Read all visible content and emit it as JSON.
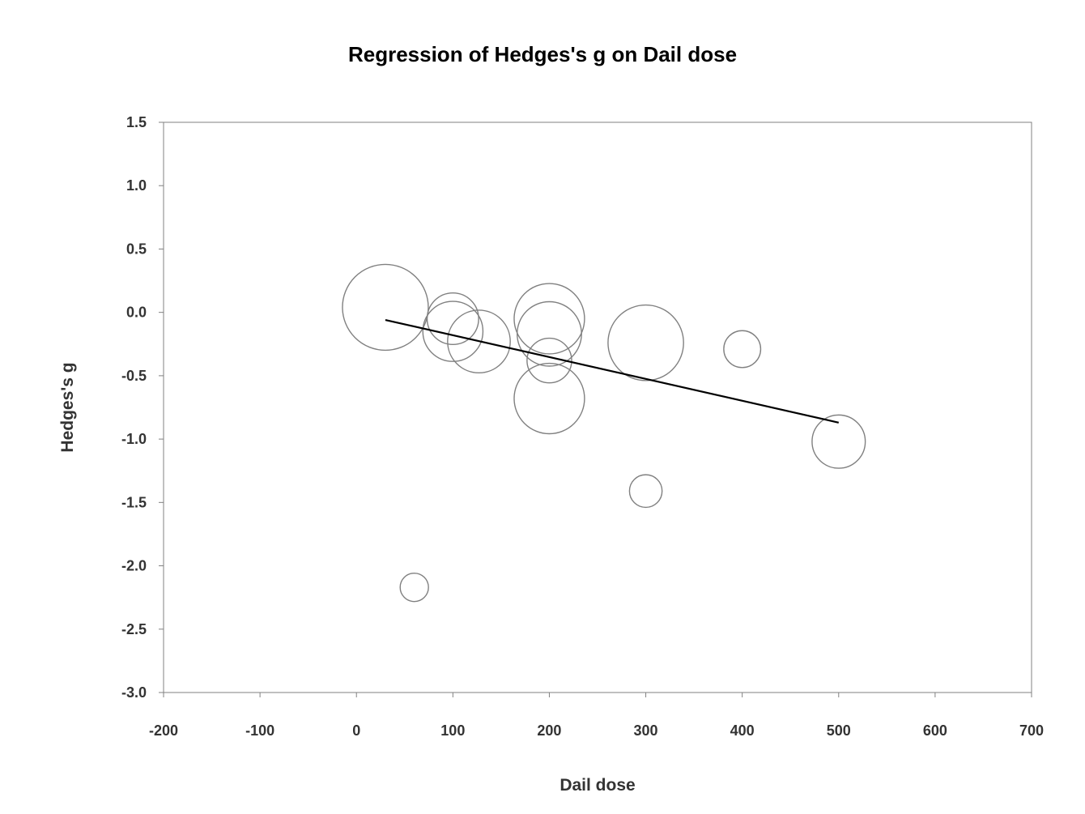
{
  "chart_data": {
    "type": "scatter",
    "title": "Regression of Hedges's g on Dail dose",
    "xlabel": "Dail dose",
    "ylabel": "Hedges's g",
    "xlim": [
      -200,
      700
    ],
    "ylim": [
      -3.0,
      1.5
    ],
    "xticks": [
      "-200",
      "-100",
      "0",
      "100",
      "200",
      "300",
      "400",
      "500",
      "600",
      "700"
    ],
    "yticks": [
      "1.5",
      "1.0",
      "0.5",
      "0.0",
      "-0.5",
      "-1.0",
      "-1.5",
      "-2.0",
      "-2.5",
      "-3.0"
    ],
    "xtick_values": [
      -200,
      -100,
      0,
      100,
      200,
      300,
      400,
      500,
      600,
      700
    ],
    "ytick_values": [
      1.5,
      1.0,
      0.5,
      0.0,
      -0.5,
      -1.0,
      -1.5,
      -2.0,
      -2.5,
      -3.0
    ],
    "grid": false,
    "legend": "none",
    "bubble_color": "#808080",
    "line_color": "#000000",
    "points": [
      {
        "x": 30,
        "y": 0.04,
        "weight": 1.0
      },
      {
        "x": 60,
        "y": -2.17,
        "weight": 0.33
      },
      {
        "x": 100,
        "y": -0.05,
        "weight": 0.6
      },
      {
        "x": 100,
        "y": -0.15,
        "weight": 0.7
      },
      {
        "x": 127,
        "y": -0.23,
        "weight": 0.73
      },
      {
        "x": 200,
        "y": -0.05,
        "weight": 0.82
      },
      {
        "x": 200,
        "y": -0.17,
        "weight": 0.75
      },
      {
        "x": 200,
        "y": -0.38,
        "weight": 0.52
      },
      {
        "x": 200,
        "y": -0.68,
        "weight": 0.82
      },
      {
        "x": 300,
        "y": -0.24,
        "weight": 0.88
      },
      {
        "x": 300,
        "y": -1.41,
        "weight": 0.38
      },
      {
        "x": 400,
        "y": -0.29,
        "weight": 0.43
      },
      {
        "x": 500,
        "y": -1.02,
        "weight": 0.62
      }
    ],
    "regression_line": {
      "x": [
        30,
        500
      ],
      "y": [
        -0.06,
        -0.87
      ]
    }
  }
}
